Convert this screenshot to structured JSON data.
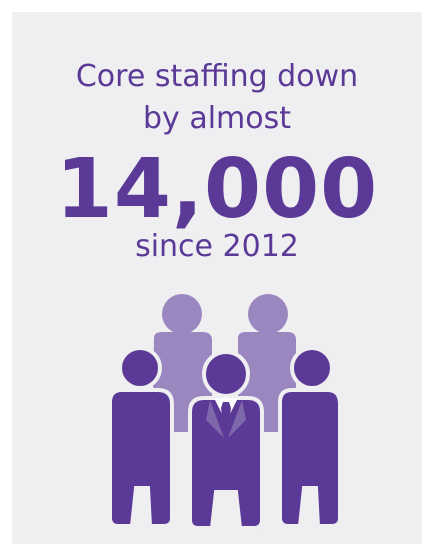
{
  "infographic": {
    "line1": "Core staffing down",
    "line2": "by almost",
    "number": "14,000",
    "line4": "since 2012"
  },
  "icon": {
    "name": "staff-group-icon",
    "primary_color": "#5a3a96",
    "secondary_color": "#9b87c0",
    "background_color": "#efeff1"
  }
}
